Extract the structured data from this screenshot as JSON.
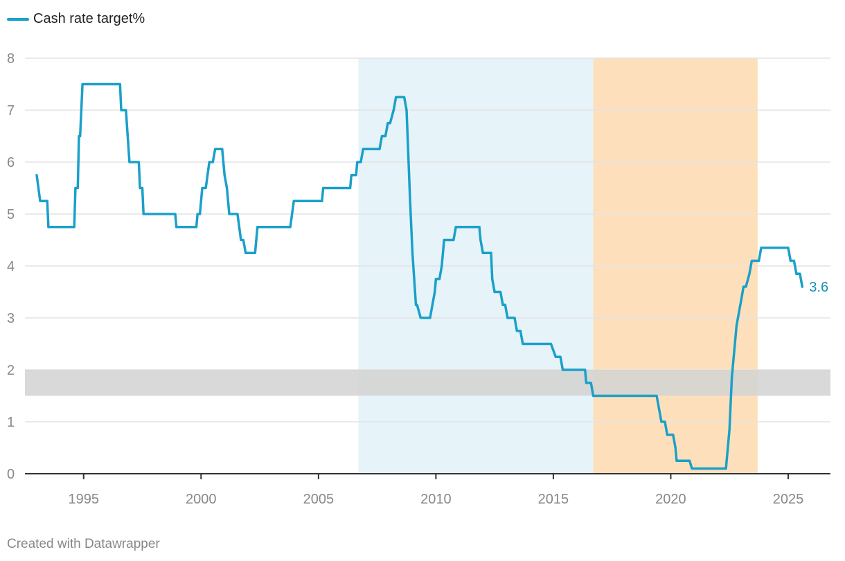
{
  "legend": {
    "label": "Cash rate target%"
  },
  "credit": "Created with Datawrapper",
  "colors": {
    "line": "#1aa0c9",
    "label": "#1590b5",
    "shade_blue": "#e6f3f9",
    "shade_orange": "#fde0bb",
    "band": "#d2d2d2",
    "grid": "#e3e3e3",
    "axis": "#333333"
  },
  "chart_data": {
    "type": "line",
    "title": "",
    "xlabel": "",
    "ylabel": "",
    "xlim": [
      1992.5,
      2026.8
    ],
    "ylim": [
      0,
      8
    ],
    "yticks": [
      "0",
      "1",
      "2",
      "3",
      "4",
      "5",
      "6",
      "7",
      "8"
    ],
    "xticks": [
      "1995",
      "2000",
      "2005",
      "2010",
      "2015",
      "2020",
      "2025"
    ],
    "grid": true,
    "legend_position": "top-left",
    "end_label": "3.6",
    "shaded_periods": [
      {
        "from": 2006.7,
        "to": 2016.7,
        "color": "shade_blue"
      },
      {
        "from": 2016.7,
        "to": 2023.7,
        "color": "shade_orange"
      }
    ],
    "target_band": {
      "from": 1.5,
      "to": 2.0
    },
    "series": [
      {
        "name": "Cash rate target%",
        "points": [
          [
            1993.0,
            5.75
          ],
          [
            1993.15,
            5.25
          ],
          [
            1993.45,
            5.25
          ],
          [
            1993.5,
            4.75
          ],
          [
            1994.6,
            4.75
          ],
          [
            1994.65,
            5.5
          ],
          [
            1994.75,
            5.5
          ],
          [
            1994.8,
            6.5
          ],
          [
            1994.85,
            6.5
          ],
          [
            1994.95,
            7.5
          ],
          [
            1996.55,
            7.5
          ],
          [
            1996.6,
            7.0
          ],
          [
            1996.8,
            7.0
          ],
          [
            1996.95,
            6.0
          ],
          [
            1997.35,
            6.0
          ],
          [
            1997.4,
            5.5
          ],
          [
            1997.5,
            5.5
          ],
          [
            1997.55,
            5.0
          ],
          [
            1998.9,
            5.0
          ],
          [
            1998.95,
            4.75
          ],
          [
            1999.8,
            4.75
          ],
          [
            1999.85,
            5.0
          ],
          [
            1999.95,
            5.0
          ],
          [
            2000.05,
            5.5
          ],
          [
            2000.2,
            5.5
          ],
          [
            2000.35,
            6.0
          ],
          [
            2000.5,
            6.0
          ],
          [
            2000.6,
            6.25
          ],
          [
            2000.9,
            6.25
          ],
          [
            2001.0,
            5.75
          ],
          [
            2001.1,
            5.5
          ],
          [
            2001.2,
            5.0
          ],
          [
            2001.55,
            5.0
          ],
          [
            2001.7,
            4.5
          ],
          [
            2001.8,
            4.5
          ],
          [
            2001.9,
            4.25
          ],
          [
            2002.3,
            4.25
          ],
          [
            2002.4,
            4.75
          ],
          [
            2003.8,
            4.75
          ],
          [
            2003.95,
            5.25
          ],
          [
            2005.15,
            5.25
          ],
          [
            2005.2,
            5.5
          ],
          [
            2006.35,
            5.5
          ],
          [
            2006.4,
            5.75
          ],
          [
            2006.6,
            5.75
          ],
          [
            2006.65,
            6.0
          ],
          [
            2006.8,
            6.0
          ],
          [
            2006.9,
            6.25
          ],
          [
            2007.6,
            6.25
          ],
          [
            2007.7,
            6.5
          ],
          [
            2007.85,
            6.5
          ],
          [
            2007.95,
            6.75
          ],
          [
            2008.05,
            6.75
          ],
          [
            2008.2,
            7.0
          ],
          [
            2008.3,
            7.25
          ],
          [
            2008.65,
            7.25
          ],
          [
            2008.75,
            7.0
          ],
          [
            2008.9,
            5.25
          ],
          [
            2009.0,
            4.25
          ],
          [
            2009.15,
            3.25
          ],
          [
            2009.2,
            3.25
          ],
          [
            2009.35,
            3.0
          ],
          [
            2009.75,
            3.0
          ],
          [
            2009.85,
            3.25
          ],
          [
            2009.95,
            3.5
          ],
          [
            2010.0,
            3.75
          ],
          [
            2010.15,
            3.75
          ],
          [
            2010.25,
            4.0
          ],
          [
            2010.35,
            4.5
          ],
          [
            2010.75,
            4.5
          ],
          [
            2010.85,
            4.75
          ],
          [
            2011.85,
            4.75
          ],
          [
            2011.9,
            4.5
          ],
          [
            2012.0,
            4.25
          ],
          [
            2012.35,
            4.25
          ],
          [
            2012.4,
            3.75
          ],
          [
            2012.5,
            3.5
          ],
          [
            2012.75,
            3.5
          ],
          [
            2012.85,
            3.25
          ],
          [
            2012.95,
            3.25
          ],
          [
            2013.05,
            3.0
          ],
          [
            2013.35,
            3.0
          ],
          [
            2013.45,
            2.75
          ],
          [
            2013.6,
            2.75
          ],
          [
            2013.7,
            2.5
          ],
          [
            2014.9,
            2.5
          ],
          [
            2015.1,
            2.25
          ],
          [
            2015.3,
            2.25
          ],
          [
            2015.4,
            2.0
          ],
          [
            2016.35,
            2.0
          ],
          [
            2016.4,
            1.75
          ],
          [
            2016.6,
            1.75
          ],
          [
            2016.7,
            1.5
          ],
          [
            2019.4,
            1.5
          ],
          [
            2019.5,
            1.25
          ],
          [
            2019.6,
            1.0
          ],
          [
            2019.75,
            1.0
          ],
          [
            2019.85,
            0.75
          ],
          [
            2020.1,
            0.75
          ],
          [
            2020.2,
            0.5
          ],
          [
            2020.25,
            0.25
          ],
          [
            2020.8,
            0.25
          ],
          [
            2020.9,
            0.1
          ],
          [
            2022.35,
            0.1
          ],
          [
            2022.4,
            0.35
          ],
          [
            2022.5,
            0.85
          ],
          [
            2022.6,
            1.85
          ],
          [
            2022.7,
            2.35
          ],
          [
            2022.8,
            2.85
          ],
          [
            2022.9,
            3.1
          ],
          [
            2023.0,
            3.35
          ],
          [
            2023.1,
            3.6
          ],
          [
            2023.2,
            3.6
          ],
          [
            2023.35,
            3.85
          ],
          [
            2023.45,
            4.1
          ],
          [
            2023.75,
            4.1
          ],
          [
            2023.85,
            4.35
          ],
          [
            2025.0,
            4.35
          ],
          [
            2025.1,
            4.1
          ],
          [
            2025.25,
            4.1
          ],
          [
            2025.35,
            3.85
          ],
          [
            2025.5,
            3.85
          ],
          [
            2025.6,
            3.6
          ]
        ]
      }
    ]
  }
}
